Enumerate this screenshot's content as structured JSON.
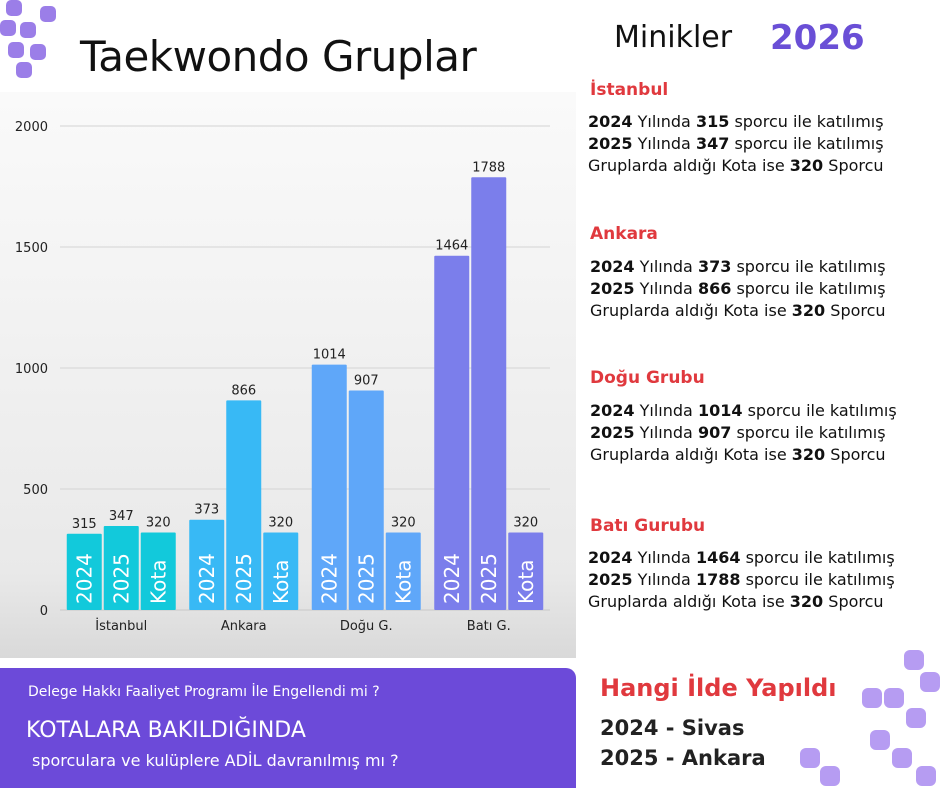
{
  "header": {
    "title": "Taekwondo Gruplar",
    "subtitle": "Minikler",
    "year": "2026"
  },
  "chart_data": {
    "type": "bar",
    "categories": [
      "İstanbul",
      "Ankara",
      "Doğu G.",
      "Batı G."
    ],
    "series": [
      {
        "name": "2024",
        "values": [
          315,
          373,
          1014,
          1464
        ]
      },
      {
        "name": "2025",
        "values": [
          347,
          866,
          907,
          1788
        ]
      },
      {
        "name": "Kota",
        "values": [
          320,
          320,
          320,
          320
        ]
      }
    ],
    "ylim": [
      0,
      2000
    ],
    "yticks": [
      0,
      500,
      1000,
      1500,
      2000
    ],
    "grid": true,
    "legend": "none",
    "category_colors": [
      "#12c9db",
      "#38b9f5",
      "#5fa7f9",
      "#7b7eeb"
    ]
  },
  "groups": [
    {
      "title": "İstanbul",
      "y2024": "315",
      "y2025": "347",
      "kota": "320"
    },
    {
      "title": "Ankara",
      "y2024": "373",
      "y2025": "866",
      "kota": "320"
    },
    {
      "title": "Doğu Grubu",
      "y2024": "1014",
      "y2025": "907",
      "kota": "320"
    },
    {
      "title": "Batı Gurubu",
      "y2024": "1464",
      "y2025": "1788",
      "kota": "320"
    }
  ],
  "text": {
    "yilinda": "Yılında",
    "sporcu_ile": "sporcu ile katılımış",
    "kota_prefix": "Gruplarda aldığı Kota ise",
    "kota_suffix": "Sporcu",
    "year_2024": "2024",
    "year_2025": "2025"
  },
  "banner": {
    "question1": "Delege Hakkı Faaliyet Programı İle Engellendi mi ?",
    "headline": "KOTALARA BAKILDIĞINDA",
    "question2": "sporculara ve kulüplere ADİL davranılmış mı ?"
  },
  "host": {
    "title": "Hangi İlde Yapıldı",
    "line1": "2024 - Sivas",
    "line2": "2025 - Ankara"
  },
  "colors": {
    "accent_purple": "#6c4ad9",
    "accent_red": "#e0393e",
    "decor_purple": "#b69cf2"
  }
}
